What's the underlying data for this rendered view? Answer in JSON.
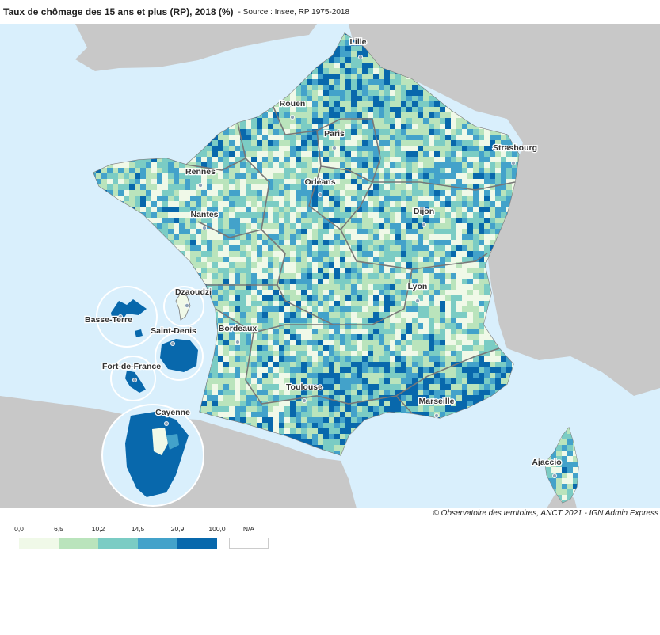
{
  "header": {
    "title": "Taux de chômage des 15 ans et plus (RP), 2018 (%)",
    "source": "- Source : Insee, RP 1975-2018"
  },
  "copyright": "© Observatoire des territoires, ANCT 2021 - IGN Admin Express",
  "colors": {
    "sea": "#d9effc",
    "land_other": "#c8c8c8",
    "border": "#7a7a7a",
    "class_1": "#f0f9e8",
    "class_2": "#bae4bc",
    "class_3": "#7bccc4",
    "class_4": "#43a2ca",
    "class_5": "#0868ac",
    "na": "#ffffff"
  },
  "legend": {
    "breaks": [
      "0,0",
      "6,5",
      "10,2",
      "14,5",
      "20,9",
      "100,0"
    ],
    "na_label": "N/A"
  },
  "cities": [
    {
      "name": "Lille"
    },
    {
      "name": "Rouen"
    },
    {
      "name": "Paris"
    },
    {
      "name": "Strasbourg"
    },
    {
      "name": "Rennes"
    },
    {
      "name": "Orléans"
    },
    {
      "name": "Nantes"
    },
    {
      "name": "Dijon"
    },
    {
      "name": "Lyon"
    },
    {
      "name": "Bordeaux"
    },
    {
      "name": "Toulouse"
    },
    {
      "name": "Marseille"
    },
    {
      "name": "Ajaccio"
    },
    {
      "name": "Dzaoudzi"
    },
    {
      "name": "Basse-Terre"
    },
    {
      "name": "Saint-Denis"
    },
    {
      "name": "Fort-de-France"
    },
    {
      "name": "Cayenne"
    }
  ]
}
